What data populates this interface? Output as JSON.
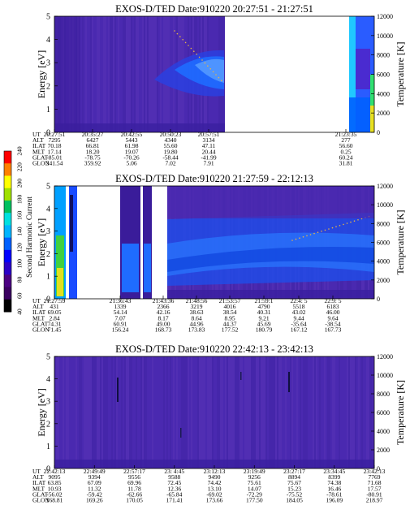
{
  "colorbar": {
    "label": "Second Harmonic Current",
    "ticks": [
      "40",
      "60",
      "80",
      "100",
      "120",
      "140",
      "160",
      "180",
      "200",
      "220",
      "240"
    ],
    "colors": [
      "#000000",
      "#3a0060",
      "#4b0082",
      "#2a00c8",
      "#0000ff",
      "#0060ff",
      "#00b4ff",
      "#00e0e0",
      "#00c060",
      "#a0e000",
      "#ffff00",
      "#ff8000",
      "#ff0000"
    ]
  },
  "chart_data": [
    {
      "type": "heatmap",
      "title": "EXOS-D/TED   Date:910220  20:27:51 - 21:27:51",
      "ylabel": "Energy [eV]",
      "y2label": "Temperature [K]",
      "ylim": [
        0,
        5
      ],
      "y2lim": [
        0,
        12000
      ],
      "yticks": [
        "0",
        "1",
        "2",
        "3",
        "4",
        "5"
      ],
      "y2ticks": [
        "0",
        "2000",
        "4000",
        "6000",
        "8000",
        "10000",
        "12000"
      ],
      "row_labels": [
        "UT",
        "ALT",
        "ILAT",
        "MLT",
        "GLAT",
        "GLON"
      ],
      "columns": [
        {
          "UT": "20:27:51",
          "ALT": "7295",
          "ILAT": "70.18",
          "MLT": "17.14",
          "GLAT": "-85.01",
          "GLON": "341.54"
        },
        {
          "UT": "20:35:27",
          "ALT": "6427",
          "ILAT": "66.81",
          "MLT": "18.20",
          "GLAT": "-78.75",
          "GLON": "359.92"
        },
        {
          "UT": "20:42:55",
          "ALT": "5443",
          "ILAT": "61.98",
          "MLT": "19.07",
          "GLAT": "-70.26",
          "GLON": "5.06"
        },
        {
          "UT": "20:50:23",
          "ALT": "4340",
          "ILAT": "55.60",
          "MLT": "19.80",
          "GLAT": "-58.44",
          "GLON": "7.02"
        },
        {
          "UT": "20:57:51",
          "ALT": "3134",
          "ILAT": "47.11",
          "MLT": "20.44",
          "GLAT": "-41.99",
          "GLON": "7.91"
        },
        {
          "UT": "21:23:35",
          "ALT": "277",
          "ILAT": "56.60",
          "MLT": "0.25",
          "GLAT": "60.24",
          "GLON": "31.81"
        }
      ]
    },
    {
      "type": "heatmap",
      "title": "EXOS-D/TED   Date:910220  21:27:59 - 22:12:13",
      "ylabel": "Energy [eV]",
      "y2label": "Temperature [K]",
      "ylim": [
        0,
        5
      ],
      "y2lim": [
        0,
        12000
      ],
      "yticks": [
        "0",
        "1",
        "2",
        "3",
        "4",
        "5"
      ],
      "y2ticks": [
        "0",
        "2000",
        "4000",
        "6000",
        "8000",
        "10000",
        "12000"
      ],
      "row_labels": [
        "UT",
        "ALT",
        "ILAT",
        "MLT",
        "GLAT",
        "GLON"
      ],
      "columns": [
        {
          "UT": "21:27:59",
          "ALT": "431",
          "ILAT": "69.05",
          "MLT": "2.84",
          "GLAT": "74.31",
          "GLON": "71.45"
        },
        {
          "UT": "21:36:43",
          "ALT": "1339",
          "ILAT": "54.14",
          "MLT": "7.07",
          "GLAT": "60.91",
          "GLON": "156.24"
        },
        {
          "UT": "21:43:36",
          "ALT": "2366",
          "ILAT": "42.16",
          "MLT": "8.17",
          "GLAT": "49.00",
          "GLON": "168.73"
        },
        {
          "UT": "21:48:56",
          "ALT": "3219",
          "ILAT": "38.63",
          "MLT": "8.64",
          "GLAT": "44.96",
          "GLON": "173.83"
        },
        {
          "UT": "21:53:57",
          "ALT": "4016",
          "ILAT": "38.54",
          "MLT": "8.95",
          "GLAT": "44.37",
          "GLON": "177.52"
        },
        {
          "UT": "21:59:1",
          "ALT": "4790",
          "ILAT": "40.31",
          "MLT": "9.21",
          "GLAT": "45.69",
          "GLON": "180.79"
        },
        {
          "UT": "22:4: 5",
          "ALT": "5518",
          "ILAT": "43.02",
          "MLT": "9.44",
          "GLAT": "-35.64",
          "GLON": "167.12"
        },
        {
          "UT": "22:9: 5",
          "ALT": "6183",
          "ILAT": "46.00",
          "MLT": "9.64",
          "GLAT": "-38.54",
          "GLON": "167.73"
        }
      ]
    },
    {
      "type": "heatmap",
      "title": "EXOS-D/TED   Date:910220  22:42:13 - 23:42:13",
      "ylabel": "Energy [eV]",
      "y2label": "Temperature [K]",
      "ylim": [
        0,
        5
      ],
      "y2lim": [
        0,
        12000
      ],
      "yticks": [
        "0",
        "1",
        "2",
        "3",
        "4",
        "5"
      ],
      "y2ticks": [
        "0",
        "2000",
        "4000",
        "6000",
        "8000",
        "10000",
        "12000"
      ],
      "row_labels": [
        "UT",
        "ALT",
        "ILAT",
        "MLT",
        "GLAT",
        "GLON"
      ],
      "columns": [
        {
          "UT": "22:42:13",
          "ALT": "9095",
          "ILAT": "63.85",
          "MLT": "10.93",
          "GLAT": "-56.02",
          "GLON": "168.81"
        },
        {
          "UT": "22:49:49",
          "ALT": "9394",
          "ILAT": "67.09",
          "MLT": "11.32",
          "GLAT": "-59.42",
          "GLON": "169.26"
        },
        {
          "UT": "22:57:17",
          "ALT": "9556",
          "ILAT": "69.96",
          "MLT": "11.78",
          "GLAT": "-62.66",
          "GLON": "170.05"
        },
        {
          "UT": "23: 4:45",
          "ALT": "9588",
          "ILAT": "72.45",
          "MLT": "12.36",
          "GLAT": "-65.84",
          "GLON": "171.41"
        },
        {
          "UT": "23:12:13",
          "ALT": "9490",
          "ILAT": "74.42",
          "MLT": "13.10",
          "GLAT": "-69.02",
          "GLON": "173.66"
        },
        {
          "UT": "23:19:49",
          "ALT": "9256",
          "ILAT": "75.61",
          "MLT": "14.07",
          "GLAT": "-72.29",
          "GLON": "177.50"
        },
        {
          "UT": "23:27:17",
          "ALT": "8894",
          "ILAT": "75.67",
          "MLT": "15.23",
          "GLAT": "-75.52",
          "GLON": "184.05"
        },
        {
          "UT": "23:34:45",
          "ALT": "8399",
          "ILAT": "74.38",
          "MLT": "16.46",
          "GLAT": "-78.61",
          "GLON": "196.09"
        },
        {
          "UT": "23:42:13",
          "ALT": "7769",
          "ILAT": "71.68",
          "MLT": "17.57",
          "GLAT": "-80.91",
          "GLON": "218.97"
        }
      ]
    }
  ]
}
